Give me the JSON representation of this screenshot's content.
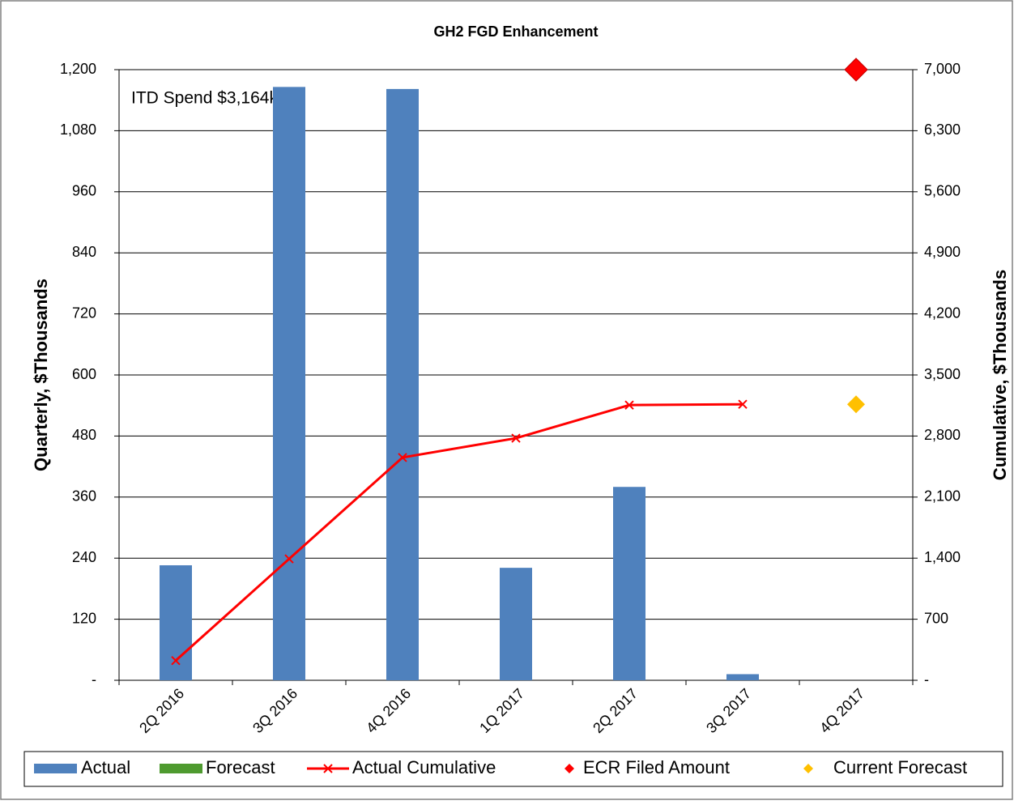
{
  "chart_data": {
    "type": "bar",
    "title": "GH2 FGD Enhancement",
    "y_label": "Quarterly, $Thousands",
    "y2_label": "Cumulative, $Thousands",
    "annotation": "ITD Spend  $3,164k",
    "categories": [
      "2Q 2016",
      "3Q 2016",
      "4Q 2016",
      "1Q 2017",
      "2Q 2017",
      "3Q 2017",
      "4Q 2017"
    ],
    "series": [
      {
        "name": "Actual",
        "type": "bar",
        "color": "#4f81bd",
        "values": [
          226,
          1166,
          1162,
          221,
          380,
          12,
          null
        ]
      },
      {
        "name": "Forecast",
        "type": "bar",
        "color": "#4e9a2f",
        "values": [
          null,
          null,
          null,
          null,
          null,
          null,
          null
        ]
      },
      {
        "name": "Actual Cumulative",
        "type": "line",
        "axis": "y2",
        "color": "#ff0000",
        "values": [
          226,
          1392,
          2554,
          2775,
          3155,
          3164,
          null
        ]
      },
      {
        "name": "ECR Filed Amount",
        "type": "marker",
        "axis": "y2",
        "color": "#ff0000",
        "values": [
          null,
          null,
          null,
          null,
          null,
          null,
          7000
        ]
      },
      {
        "name": "Current Forecast",
        "type": "marker",
        "axis": "y2",
        "color": "#ffc000",
        "values": [
          null,
          null,
          null,
          null,
          null,
          null,
          3164
        ]
      }
    ],
    "ylim": [
      0,
      1200
    ],
    "yticks": [
      {
        "value": 0,
        "label": "-"
      },
      120,
      240,
      360,
      480,
      600,
      720,
      840,
      960,
      {
        "value": 1080,
        "label": "1,080"
      },
      {
        "value": 1200,
        "label": "1,200"
      }
    ],
    "y2lim": [
      0,
      7000
    ],
    "y2ticks": [
      {
        "value": 0,
        "label": "-"
      },
      700,
      {
        "value": 1400,
        "label": "1,400"
      },
      {
        "value": 2100,
        "label": "2,100"
      },
      {
        "value": 2800,
        "label": "2,800"
      },
      {
        "value": 3500,
        "label": "3,500"
      },
      {
        "value": 4200,
        "label": "4,200"
      },
      {
        "value": 4900,
        "label": "4,900"
      },
      {
        "value": 5600,
        "label": "5,600"
      },
      {
        "value": 6300,
        "label": "6,300"
      },
      {
        "value": 7000,
        "label": "7,000"
      }
    ],
    "grid": true,
    "legend": "bottom"
  }
}
